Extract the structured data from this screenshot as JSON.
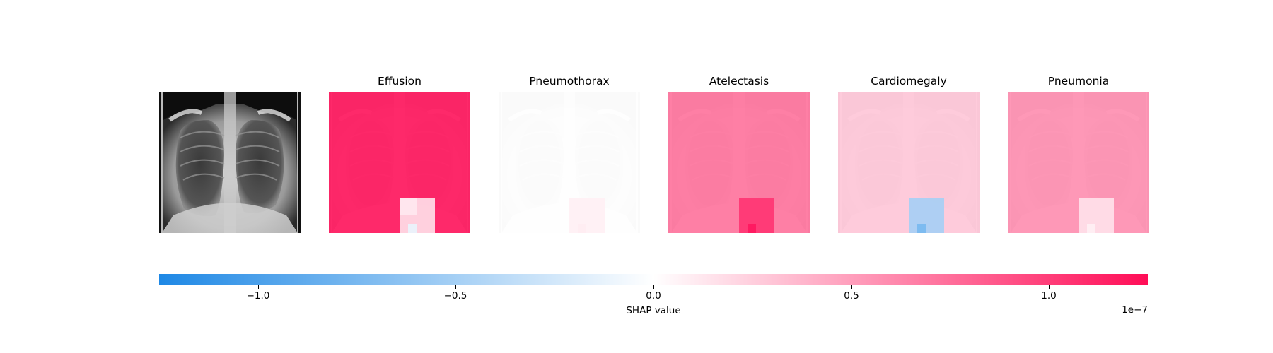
{
  "chart_data": {
    "type": "heatmap",
    "title": "",
    "panels": [
      {
        "label": "",
        "kind": "input-image"
      },
      {
        "label": "Effusion",
        "base_shap": 1.25,
        "patches": [
          {
            "shap": 0.15
          },
          {
            "shap": 0.12
          },
          {
            "shap": -0.12
          }
        ]
      },
      {
        "label": "Pneumothorax",
        "base_shap": 0.0,
        "patches": [
          {
            "shap": 0.08
          },
          {
            "shap": 0.1
          }
        ]
      },
      {
        "label": "Atelectasis",
        "base_shap": 0.75,
        "patches": [
          {
            "shap": 1.05
          },
          {
            "shap": 1.2
          }
        ]
      },
      {
        "label": "Cardiomegaly",
        "base_shap": 0.3,
        "patches": [
          {
            "shap": -0.5
          },
          {
            "shap": -0.75
          }
        ]
      },
      {
        "label": "Pneumonia",
        "base_shap": 0.6,
        "patches": [
          {
            "shap": 0.15
          },
          {
            "shap": 0.08
          }
        ]
      }
    ],
    "colorbar": {
      "label": "SHAP value",
      "multiplier_label": "1e−7",
      "range": [
        -1.25,
        1.25
      ],
      "ticks": [
        {
          "value": -1.0,
          "label": "−1.0"
        },
        {
          "value": -0.5,
          "label": "−0.5"
        },
        {
          "value": 0.0,
          "label": "0.0"
        },
        {
          "value": 0.5,
          "label": "0.5"
        },
        {
          "value": 1.0,
          "label": "1.0"
        }
      ],
      "colormap": [
        "#1e88e5",
        "#ffffff",
        "#ff0d57"
      ]
    }
  }
}
